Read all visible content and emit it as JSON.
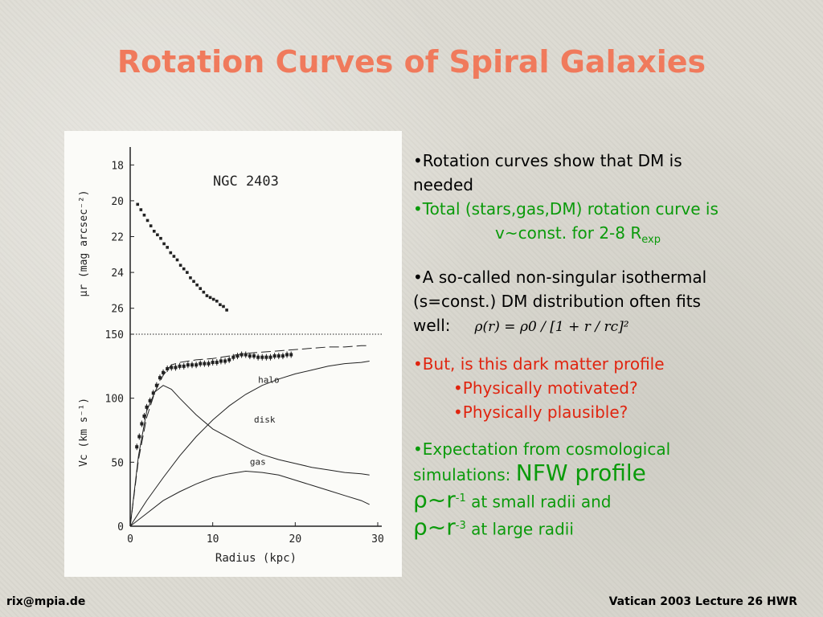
{
  "slide": {
    "title": "Rotation Curves of Spiral Galaxies",
    "footer_left": "rix@mpia.de",
    "footer_right": "Vatican 2003 Lecture 26 HWR"
  },
  "bullets": {
    "b1_line1": "•Rotation curves show that DM is",
    "b1_line2": "needed",
    "b2_line1": "•Total (stars,gas,DM) rotation curve is",
    "b2_line2": "v~const. for 2-8 R",
    "b2_sub": "exp",
    "b3_line1": "•A so-called non-singular isothermal",
    "b3_line2": "(s=const.) DM distribution often fits",
    "b3_line3": "well:",
    "formula": "ρ(r) = ρ0 / [1 + r / rc]²",
    "b4_line1": "•But, is this dark matter profile",
    "b4_line2": "•Physically motivated?",
    "b4_line3": "•Physically plausible?",
    "b5_line1": "•Expectation from cosmological",
    "b5_line2a": "simulations: ",
    "b5_line2b": "NFW profile",
    "b5_l3_rho": "ρ",
    "b5_l3_r": "~r",
    "b5_l3_exp": "-1",
    "b5_l3_tail": " at small radii and",
    "b5_l4_rho": "ρ",
    "b5_l4_r": "~r",
    "b5_l4_exp": "-3",
    "b5_l4_tail": " at large radii"
  },
  "colors": {
    "title": "#f07a5c",
    "green": "#0a9a0a",
    "red": "#e0240f"
  },
  "chart_data": [
    {
      "type": "scatter",
      "title": "NGC 2403",
      "ylabel": "μr (mag arcsec⁻²)",
      "ylim": [
        17,
        27
      ],
      "y_inverted": true,
      "yticks": [
        "18",
        "20",
        "22",
        "24",
        "26"
      ],
      "series": [
        {
          "x": [
            0.9,
            1.3,
            1.7,
            2.1,
            2.5,
            2.9,
            3.3,
            3.7,
            4.1,
            4.5,
            4.9,
            5.3,
            5.7,
            6.1,
            6.5,
            6.9,
            7.3,
            7.7,
            8.1,
            8.5,
            8.9,
            9.3,
            9.7,
            10.1,
            10.5,
            10.9,
            11.3,
            11.7
          ],
          "y": [
            20.2,
            20.5,
            20.8,
            21.1,
            21.4,
            21.7,
            21.9,
            22.1,
            22.4,
            22.6,
            22.9,
            23.1,
            23.3,
            23.6,
            23.8,
            24.0,
            24.3,
            24.5,
            24.7,
            24.9,
            25.1,
            25.3,
            25.4,
            25.5,
            25.6,
            25.8,
            25.9,
            26.1
          ]
        }
      ]
    },
    {
      "type": "line",
      "xlabel": "Radius (kpc)",
      "ylabel": "Vc (km s⁻¹)",
      "xlim": [
        0,
        30
      ],
      "ylim": [
        0,
        150
      ],
      "xticks": [
        "0",
        "10",
        "20",
        "30"
      ],
      "yticks": [
        "0",
        "50",
        "100",
        "150"
      ],
      "series": [
        {
          "name": "total",
          "x": [
            0,
            1,
            2,
            3,
            4,
            5,
            6,
            8,
            10,
            12,
            14,
            16,
            18,
            20,
            22,
            24,
            26,
            28,
            29
          ],
          "y": [
            0,
            52,
            85,
            105,
            118,
            126,
            128,
            130,
            131,
            133,
            135,
            136,
            137,
            138,
            139,
            140,
            140,
            141,
            141
          ]
        },
        {
          "name": "halo",
          "x": [
            0,
            2,
            4,
            6,
            8,
            10,
            12,
            14,
            16,
            18,
            20,
            22,
            24,
            26,
            28,
            29
          ],
          "y": [
            0,
            20,
            38,
            55,
            70,
            83,
            94,
            103,
            110,
            115,
            119,
            122,
            125,
            127,
            128,
            129
          ]
        },
        {
          "name": "disk",
          "x": [
            0,
            1,
            2,
            3,
            4,
            5,
            6,
            8,
            10,
            12,
            14,
            16,
            18,
            20,
            22,
            24,
            26,
            28,
            29
          ],
          "y": [
            0,
            55,
            90,
            105,
            110,
            107,
            100,
            87,
            76,
            69,
            62,
            56,
            52,
            49,
            46,
            44,
            42,
            41,
            40
          ]
        },
        {
          "name": "gas",
          "x": [
            0,
            2,
            4,
            6,
            8,
            10,
            12,
            14,
            16,
            18,
            20,
            22,
            24,
            26,
            28,
            29
          ],
          "y": [
            0,
            10,
            20,
            27,
            33,
            38,
            41,
            43,
            42,
            40,
            36,
            32,
            28,
            24,
            20,
            17
          ]
        },
        {
          "name": "observed",
          "x": [
            0.8,
            1.1,
            1.4,
            1.7,
            2,
            2.4,
            2.8,
            3.2,
            3.6,
            4,
            4.5,
            5,
            5.5,
            6,
            6.5,
            7,
            7.5,
            8,
            8.5,
            9,
            9.5,
            10,
            10.5,
            11,
            11.5,
            12,
            12.5,
            13,
            13.5,
            14,
            14.5,
            15,
            15.5,
            16,
            16.5,
            17,
            17.5,
            18,
            18.5,
            19,
            19.5
          ],
          "y": [
            62,
            70,
            80,
            86,
            93,
            98,
            104,
            110,
            116,
            120,
            123,
            124,
            124,
            125,
            125,
            126,
            126,
            126,
            127,
            127,
            127,
            128,
            128,
            129,
            129,
            130,
            132,
            133,
            134,
            134,
            133,
            133,
            132,
            132,
            132,
            132,
            133,
            133,
            133,
            134,
            134
          ]
        }
      ]
    }
  ]
}
